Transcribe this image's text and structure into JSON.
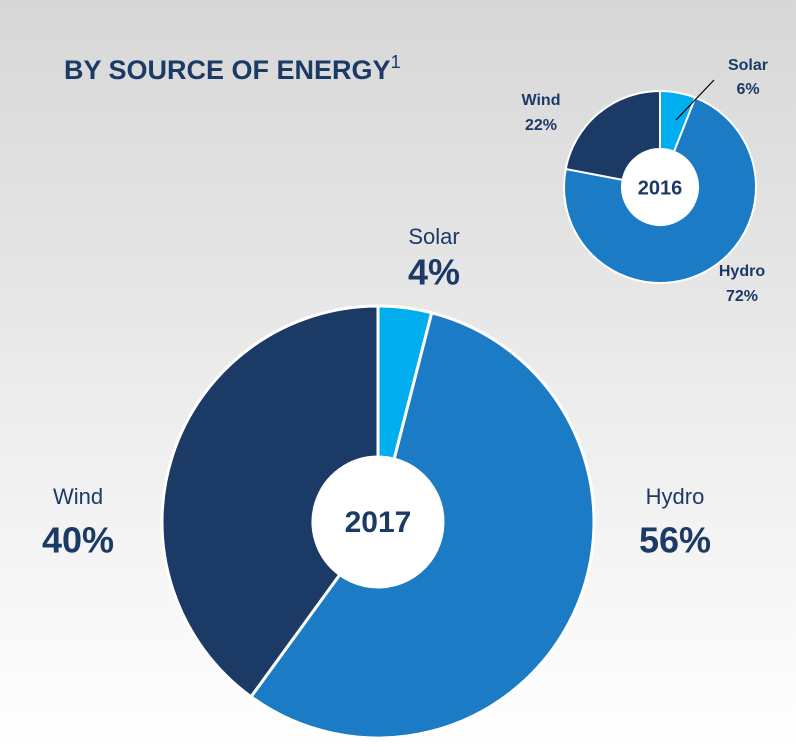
{
  "title": "BY SOURCE OF ENERGY",
  "title_note": "1",
  "chart_data": [
    {
      "type": "donut",
      "center_label": "2017",
      "categories": [
        "Solar",
        "Hydro",
        "Wind"
      ],
      "values": [
        4,
        56,
        40
      ],
      "value_labels": [
        "4%",
        "56%",
        "40%"
      ],
      "colors": [
        "#00aeef",
        "#1b7bc4",
        "#1b3a66"
      ]
    },
    {
      "type": "donut",
      "center_label": "2016",
      "categories": [
        "Solar",
        "Hydro",
        "Wind"
      ],
      "values": [
        6,
        72,
        22
      ],
      "value_labels": [
        "6%",
        "72%",
        "22%"
      ],
      "colors": [
        "#00aeef",
        "#1b7bc4",
        "#1b3a66"
      ]
    }
  ]
}
